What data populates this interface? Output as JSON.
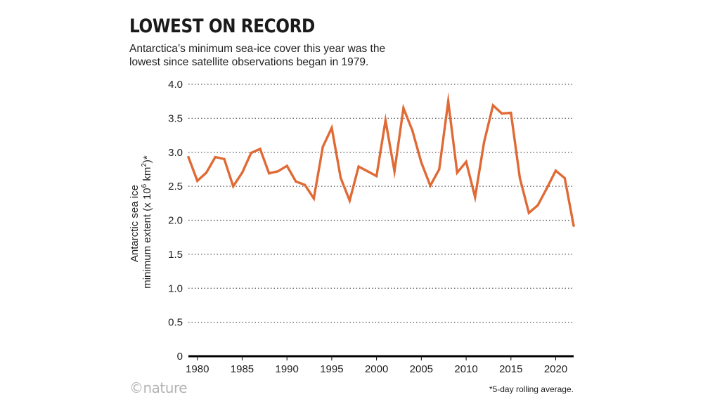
{
  "header": {
    "title": "LOWEST ON RECORD",
    "subtitle_lines": [
      "Antarctica’s minimum sea-ice cover this year was the",
      "lowest since satellite observations began in 1979."
    ]
  },
  "footer": {
    "brand": "©nature",
    "footnote": "*5-day rolling average."
  },
  "colors": {
    "line": "#e06a35",
    "grid": "#555555",
    "axis": "#000000"
  },
  "chart_data": {
    "type": "line",
    "title": "LOWEST ON RECORD",
    "xlabel": "",
    "ylabel_lines": [
      "Antarctic sea ice",
      "minimum extent (x 10",
      "6",
      " km",
      "2",
      ")*"
    ],
    "xlim": [
      1979,
      2022
    ],
    "ylim": [
      0,
      4.0
    ],
    "xticks": [
      1980,
      1985,
      1990,
      1995,
      2000,
      2005,
      2010,
      2015,
      2020
    ],
    "yticks": [
      0,
      0.5,
      1.0,
      1.5,
      2.0,
      2.5,
      3.0,
      3.5,
      4.0
    ],
    "ytick_labels": [
      "0",
      "0.5",
      "1.0",
      "1.5",
      "2.0",
      "2.5",
      "3.0",
      "3.5",
      "4.0"
    ],
    "grid": "horizontal-dotted",
    "series": [
      {
        "name": "Antarctic sea ice minimum extent",
        "x": [
          1979,
          1980,
          1981,
          1982,
          1983,
          1984,
          1985,
          1986,
          1987,
          1988,
          1989,
          1990,
          1991,
          1992,
          1993,
          1994,
          1995,
          1996,
          1997,
          1998,
          1999,
          2000,
          2001,
          2002,
          2003,
          2004,
          2005,
          2006,
          2007,
          2008,
          2009,
          2010,
          2011,
          2012,
          2013,
          2014,
          2015,
          2016,
          2017,
          2018,
          2019,
          2020,
          2021,
          2022
        ],
        "values": [
          2.93,
          2.58,
          2.7,
          2.93,
          2.9,
          2.5,
          2.7,
          2.99,
          3.05,
          2.69,
          2.72,
          2.8,
          2.57,
          2.52,
          2.32,
          3.08,
          3.36,
          2.62,
          2.29,
          2.79,
          2.72,
          2.65,
          3.47,
          2.72,
          3.65,
          3.32,
          2.85,
          2.51,
          2.75,
          3.75,
          2.7,
          2.86,
          2.34,
          3.15,
          3.69,
          3.57,
          3.58,
          2.62,
          2.11,
          2.22,
          2.47,
          2.73,
          2.62,
          1.92
        ]
      }
    ]
  }
}
